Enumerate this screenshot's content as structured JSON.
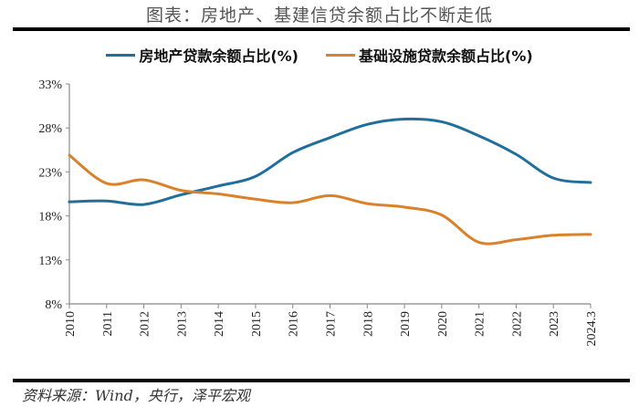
{
  "header": {
    "title": "图表：房地产、基建信贷余额占比不断走低"
  },
  "footer": {
    "source": "资料来源：Wind，央行，泽平宏观"
  },
  "chart_data": {
    "type": "line",
    "title": "图表：房地产、基建信贷余额占比不断走低",
    "categories": [
      "2010",
      "2011",
      "2012",
      "2013",
      "2014",
      "2015",
      "2016",
      "2017",
      "2018",
      "2019",
      "2020",
      "2021",
      "2022",
      "2023",
      "2024.3"
    ],
    "y_ticks": [
      "8%",
      "13%",
      "18%",
      "23%",
      "28%",
      "33%"
    ],
    "ylim": [
      8,
      33
    ],
    "y_unit": "%",
    "grid": false,
    "legend_position": "top",
    "series": [
      {
        "name": "房地产贷款余额占比(%)",
        "color": "#1f6e9c",
        "values": [
          19.6,
          19.7,
          19.3,
          20.4,
          21.4,
          22.5,
          25.2,
          26.9,
          28.4,
          29.0,
          28.7,
          27.1,
          25.0,
          22.3,
          21.8
        ]
      },
      {
        "name": "基础设施贷款余额占比(%)",
        "color": "#d9822b",
        "values": [
          24.9,
          21.7,
          22.1,
          20.9,
          20.5,
          19.9,
          19.5,
          20.3,
          19.4,
          19.0,
          18.1,
          15.0,
          15.3,
          15.8,
          15.9
        ]
      }
    ]
  }
}
